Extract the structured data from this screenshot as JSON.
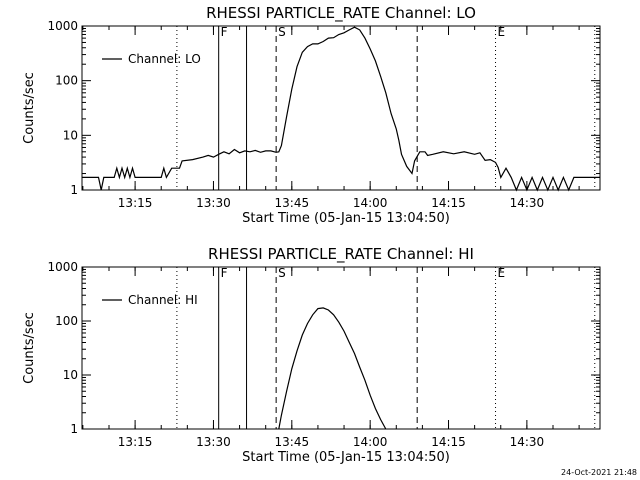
{
  "footer": "24-Oct-2021 21:48",
  "chart_data": [
    {
      "type": "line",
      "title": "RHESSI PARTICLE_RATE Channel: LO",
      "xlabel": "Start Time (05-Jan-15 13:04:50)",
      "ylabel": "Counts/sec",
      "legend": "Channel: LO",
      "legend_position": "top-left",
      "yscale": "log",
      "xlim": [
        "13:04:50",
        "14:44:00"
      ],
      "ylim": [
        1,
        1000
      ],
      "xticks": [
        "13:15",
        "13:30",
        "13:45",
        "14:00",
        "14:15",
        "14:30"
      ],
      "yticks": [
        "1",
        "10",
        "100",
        "1000"
      ],
      "markers": [
        {
          "label": "",
          "time": "13:23:00",
          "style": "dotted"
        },
        {
          "label": "F",
          "time": "13:31:00",
          "style": "solid"
        },
        {
          "label": "",
          "time": "13:36:20",
          "style": "solid"
        },
        {
          "label": "S",
          "time": "13:42:00",
          "style": "dashed"
        },
        {
          "label": "",
          "time": "14:09:00",
          "style": "dashed"
        },
        {
          "label": "E",
          "time": "14:24:00",
          "style": "dotted"
        },
        {
          "label": "",
          "time": "14:43:00",
          "style": "dotted"
        }
      ],
      "series": [
        {
          "name": "Channel: LO",
          "x": [
            "13:04:50",
            "13:08:00",
            "13:08:30",
            "13:09:00",
            "13:10:00",
            "13:11:00",
            "13:11:30",
            "13:12:00",
            "13:12:30",
            "13:13:00",
            "13:13:30",
            "13:14:00",
            "13:14:30",
            "13:15:00",
            "13:16:00",
            "13:19:00",
            "13:20:00",
            "13:20:30",
            "13:21:00",
            "13:22:00",
            "13:23:30",
            "13:24:00",
            "13:26:00",
            "13:28:00",
            "13:29:00",
            "13:30:00",
            "13:31:00",
            "13:32:00",
            "13:33:00",
            "13:34:00",
            "13:35:00",
            "13:36:00",
            "13:37:00",
            "13:38:00",
            "13:39:00",
            "13:40:00",
            "13:41:00",
            "13:42:00",
            "13:42:30",
            "13:43:00",
            "13:44:00",
            "13:45:00",
            "13:46:00",
            "13:47:00",
            "13:48:00",
            "13:49:00",
            "13:50:00",
            "13:51:00",
            "13:52:00",
            "13:53:00",
            "13:54:00",
            "13:55:00",
            "13:56:00",
            "13:57:00",
            "13:58:00",
            "13:59:00",
            "14:00:00",
            "14:01:00",
            "14:02:00",
            "14:03:00",
            "14:04:00",
            "14:05:00",
            "14:05:30",
            "14:06:00",
            "14:07:00",
            "14:08:00",
            "14:08:30",
            "14:09:30",
            "14:10:30",
            "14:11:00",
            "14:12:00",
            "14:14:00",
            "14:16:00",
            "14:18:00",
            "14:20:00",
            "14:21:00",
            "14:22:00",
            "14:23:00",
            "14:24:00",
            "14:24:30",
            "14:25:00",
            "14:26:00",
            "14:27:00",
            "14:28:00",
            "14:29:00",
            "14:30:00",
            "14:31:00",
            "14:32:00",
            "14:33:00",
            "14:34:00",
            "14:35:00",
            "14:36:00",
            "14:37:00",
            "14:38:00",
            "14:39:00",
            "14:40:00",
            "14:41:00",
            "14:42:00",
            "14:43:00",
            "14:44:00"
          ],
          "y": [
            1.7,
            1.7,
            1.0,
            1.7,
            1.7,
            1.7,
            2.5,
            1.7,
            2.5,
            1.7,
            2.5,
            1.7,
            2.5,
            1.7,
            1.7,
            1.7,
            1.7,
            2.5,
            1.7,
            2.5,
            2.5,
            3.4,
            3.6,
            4.0,
            4.3,
            4.0,
            4.5,
            5.0,
            4.6,
            5.5,
            4.8,
            5.2,
            5.0,
            5.3,
            4.9,
            5.2,
            5.2,
            4.9,
            5.0,
            6.5,
            22,
            70,
            180,
            330,
            420,
            470,
            470,
            520,
            600,
            610,
            700,
            750,
            850,
            950,
            850,
            600,
            380,
            230,
            120,
            60,
            25,
            13,
            8,
            4.5,
            2.7,
            2.0,
            3.4,
            5.0,
            5.0,
            4.3,
            4.5,
            5.0,
            4.6,
            5.0,
            4.5,
            4.8,
            3.5,
            3.6,
            3.2,
            2.6,
            1.7,
            2.5,
            1.7,
            1.0,
            1.7,
            1.0,
            1.7,
            1.0,
            1.7,
            1.0,
            1.7,
            1.0,
            1.7,
            1.0,
            1.7,
            1.7,
            1.7,
            1.7,
            1.7,
            1.7
          ]
        }
      ]
    },
    {
      "type": "line",
      "title": "RHESSI PARTICLE_RATE Channel: HI",
      "xlabel": "Start Time (05-Jan-15 13:04:50)",
      "ylabel": "Counts/sec",
      "legend": "Channel: HI",
      "legend_position": "top-left",
      "yscale": "log",
      "xlim": [
        "13:04:50",
        "14:44:00"
      ],
      "ylim": [
        1,
        1000
      ],
      "xticks": [
        "13:15",
        "13:30",
        "13:45",
        "14:00",
        "14:15",
        "14:30"
      ],
      "yticks": [
        "1",
        "10",
        "100",
        "1000"
      ],
      "markers": [
        {
          "label": "",
          "time": "13:23:00",
          "style": "dotted"
        },
        {
          "label": "F",
          "time": "13:31:00",
          "style": "solid"
        },
        {
          "label": "",
          "time": "13:36:20",
          "style": "solid"
        },
        {
          "label": "S",
          "time": "13:42:00",
          "style": "dashed"
        },
        {
          "label": "",
          "time": "14:09:00",
          "style": "dashed"
        },
        {
          "label": "E",
          "time": "14:24:00",
          "style": "dotted"
        },
        {
          "label": "",
          "time": "14:43:00",
          "style": "dotted"
        }
      ],
      "series": [
        {
          "name": "Channel: HI",
          "x": [
            "13:42:30",
            "13:43:00",
            "13:44:00",
            "13:45:00",
            "13:46:00",
            "13:47:00",
            "13:48:00",
            "13:49:00",
            "13:50:00",
            "13:51:00",
            "13:52:00",
            "13:53:00",
            "13:54:00",
            "13:55:00",
            "13:56:00",
            "13:57:00",
            "13:58:00",
            "13:59:00",
            "14:00:00",
            "14:01:00",
            "14:02:00",
            "14:03:00"
          ],
          "y": [
            1.0,
            1.8,
            5,
            13,
            28,
            55,
            90,
            130,
            170,
            175,
            160,
            130,
            95,
            65,
            40,
            25,
            14,
            8,
            4.2,
            2.4,
            1.5,
            1.0
          ]
        }
      ]
    }
  ]
}
